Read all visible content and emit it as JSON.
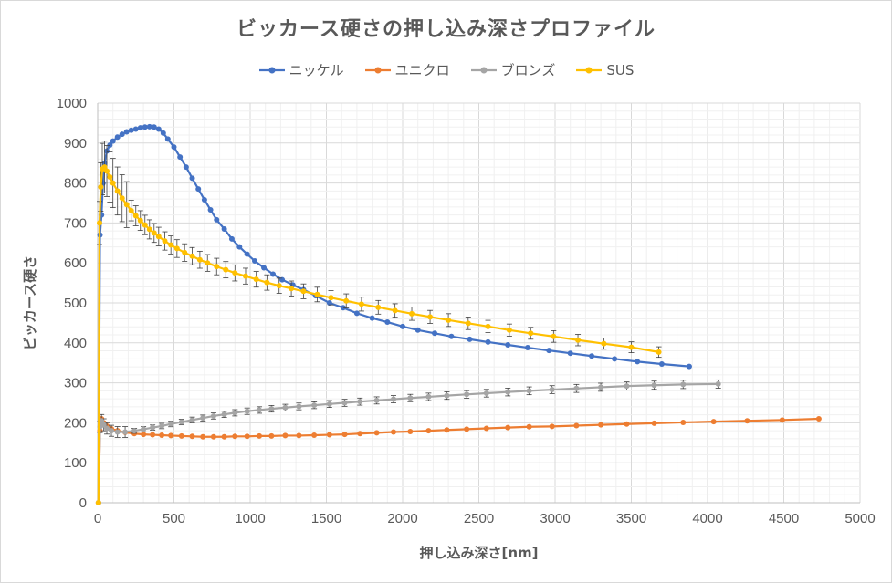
{
  "chart_data": {
    "type": "line",
    "title": "ビッカース硬さの押し込み深さプロファイル",
    "xlabel": "押し込み深さ[nm]",
    "ylabel": "ビッカース硬さ",
    "xlim": [
      0,
      5000
    ],
    "ylim": [
      0,
      1000
    ],
    "x_ticks": [
      "0",
      "500",
      "1000",
      "1500",
      "2000",
      "2500",
      "3000",
      "3500",
      "4000",
      "4500",
      "5000"
    ],
    "y_ticks": [
      "0",
      "100",
      "200",
      "300",
      "400",
      "500",
      "600",
      "700",
      "800",
      "900",
      "1000"
    ],
    "grid": true,
    "legend_position": "top",
    "series": [
      {
        "name": "ニッケル",
        "color": "#4472C4",
        "error_bars": false,
        "points": [
          [
            5,
            0
          ],
          [
            15,
            670
          ],
          [
            25,
            720
          ],
          [
            35,
            800
          ],
          [
            45,
            850
          ],
          [
            60,
            880
          ],
          [
            80,
            895
          ],
          [
            100,
            905
          ],
          [
            130,
            915
          ],
          [
            160,
            922
          ],
          [
            190,
            928
          ],
          [
            220,
            932
          ],
          [
            250,
            935
          ],
          [
            280,
            938
          ],
          [
            310,
            940
          ],
          [
            340,
            941
          ],
          [
            370,
            940
          ],
          [
            400,
            935
          ],
          [
            430,
            925
          ],
          [
            460,
            910
          ],
          [
            500,
            890
          ],
          [
            540,
            865
          ],
          [
            580,
            840
          ],
          [
            620,
            812
          ],
          [
            660,
            785
          ],
          [
            700,
            758
          ],
          [
            740,
            733
          ],
          [
            780,
            708
          ],
          [
            830,
            685
          ],
          [
            880,
            660
          ],
          [
            930,
            640
          ],
          [
            980,
            622
          ],
          [
            1030,
            605
          ],
          [
            1090,
            588
          ],
          [
            1150,
            572
          ],
          [
            1210,
            558
          ],
          [
            1280,
            545
          ],
          [
            1350,
            533
          ],
          [
            1430,
            518
          ],
          [
            1520,
            500
          ],
          [
            1610,
            488
          ],
          [
            1700,
            474
          ],
          [
            1800,
            462
          ],
          [
            1900,
            452
          ],
          [
            2000,
            441
          ],
          [
            2100,
            432
          ],
          [
            2210,
            424
          ],
          [
            2320,
            416
          ],
          [
            2440,
            409
          ],
          [
            2560,
            402
          ],
          [
            2690,
            395
          ],
          [
            2820,
            388
          ],
          [
            2960,
            381
          ],
          [
            3100,
            374
          ],
          [
            3240,
            367
          ],
          [
            3390,
            360
          ],
          [
            3540,
            353
          ],
          [
            3700,
            347
          ],
          [
            3880,
            341
          ]
        ]
      },
      {
        "name": "ユニクロ",
        "color": "#ED7D31",
        "error_bars": false,
        "points": [
          [
            5,
            0
          ],
          [
            15,
            180
          ],
          [
            25,
            210
          ],
          [
            40,
            200
          ],
          [
            60,
            192
          ],
          [
            90,
            185
          ],
          [
            130,
            180
          ],
          [
            180,
            176
          ],
          [
            240,
            173
          ],
          [
            300,
            171
          ],
          [
            360,
            170
          ],
          [
            420,
            169
          ],
          [
            480,
            168
          ],
          [
            550,
            167
          ],
          [
            620,
            166
          ],
          [
            690,
            165
          ],
          [
            760,
            165
          ],
          [
            830,
            165
          ],
          [
            900,
            166
          ],
          [
            980,
            166
          ],
          [
            1060,
            167
          ],
          [
            1140,
            167
          ],
          [
            1230,
            168
          ],
          [
            1320,
            168
          ],
          [
            1420,
            169
          ],
          [
            1520,
            170
          ],
          [
            1620,
            171
          ],
          [
            1720,
            173
          ],
          [
            1830,
            175
          ],
          [
            1940,
            177
          ],
          [
            2050,
            178
          ],
          [
            2170,
            180
          ],
          [
            2290,
            182
          ],
          [
            2420,
            184
          ],
          [
            2550,
            186
          ],
          [
            2690,
            188
          ],
          [
            2830,
            190
          ],
          [
            2980,
            191
          ],
          [
            3140,
            193
          ],
          [
            3300,
            195
          ],
          [
            3470,
            197
          ],
          [
            3650,
            199
          ],
          [
            3840,
            201
          ],
          [
            4040,
            203
          ],
          [
            4260,
            205
          ],
          [
            4490,
            207
          ],
          [
            4730,
            210
          ]
        ]
      },
      {
        "name": "ブロンズ",
        "color": "#A5A5A5",
        "error_bars": true,
        "points": [
          [
            5,
            0
          ],
          [
            15,
            190
          ],
          [
            25,
            205
          ],
          [
            40,
            195
          ],
          [
            60,
            186
          ],
          [
            90,
            180
          ],
          [
            130,
            177
          ],
          [
            180,
            177
          ],
          [
            240,
            180
          ],
          [
            300,
            184
          ],
          [
            360,
            188
          ],
          [
            420,
            192
          ],
          [
            480,
            197
          ],
          [
            550,
            202
          ],
          [
            620,
            207
          ],
          [
            690,
            212
          ],
          [
            760,
            217
          ],
          [
            830,
            221
          ],
          [
            900,
            225
          ],
          [
            980,
            229
          ],
          [
            1060,
            232
          ],
          [
            1140,
            235
          ],
          [
            1230,
            238
          ],
          [
            1320,
            241
          ],
          [
            1420,
            244
          ],
          [
            1520,
            247
          ],
          [
            1620,
            250
          ],
          [
            1720,
            253
          ],
          [
            1830,
            256
          ],
          [
            1940,
            259
          ],
          [
            2050,
            262
          ],
          [
            2170,
            265
          ],
          [
            2290,
            268
          ],
          [
            2420,
            271
          ],
          [
            2550,
            274
          ],
          [
            2690,
            277
          ],
          [
            2830,
            280
          ],
          [
            2980,
            283
          ],
          [
            3140,
            286
          ],
          [
            3300,
            289
          ],
          [
            3470,
            292
          ],
          [
            3650,
            294
          ],
          [
            3840,
            296
          ],
          [
            4070,
            297
          ]
        ]
      },
      {
        "name": "SUS",
        "color": "#FFC000",
        "error_bars": true,
        "points": [
          [
            5,
            0
          ],
          [
            12,
            700
          ],
          [
            20,
            790
          ],
          [
            30,
            835
          ],
          [
            45,
            840
          ],
          [
            60,
            830
          ],
          [
            80,
            815
          ],
          [
            100,
            800
          ],
          [
            130,
            780
          ],
          [
            160,
            762
          ],
          [
            190,
            746
          ],
          [
            220,
            731
          ],
          [
            250,
            718
          ],
          [
            280,
            706
          ],
          [
            310,
            695
          ],
          [
            340,
            684
          ],
          [
            370,
            675
          ],
          [
            400,
            666
          ],
          [
            440,
            655
          ],
          [
            480,
            645
          ],
          [
            520,
            636
          ],
          [
            570,
            626
          ],
          [
            620,
            617
          ],
          [
            670,
            608
          ],
          [
            720,
            600
          ],
          [
            780,
            591
          ],
          [
            840,
            583
          ],
          [
            900,
            575
          ],
          [
            970,
            567
          ],
          [
            1040,
            559
          ],
          [
            1110,
            551
          ],
          [
            1190,
            543
          ],
          [
            1270,
            536
          ],
          [
            1350,
            529
          ],
          [
            1440,
            521
          ],
          [
            1530,
            513
          ],
          [
            1630,
            505
          ],
          [
            1730,
            497
          ],
          [
            1840,
            489
          ],
          [
            1950,
            481
          ],
          [
            2060,
            473
          ],
          [
            2180,
            465
          ],
          [
            2300,
            457
          ],
          [
            2430,
            449
          ],
          [
            2560,
            441
          ],
          [
            2700,
            432
          ],
          [
            2840,
            424
          ],
          [
            2990,
            416
          ],
          [
            3150,
            407
          ],
          [
            3320,
            398
          ],
          [
            3500,
            389
          ],
          [
            3680,
            377
          ]
        ]
      }
    ]
  }
}
